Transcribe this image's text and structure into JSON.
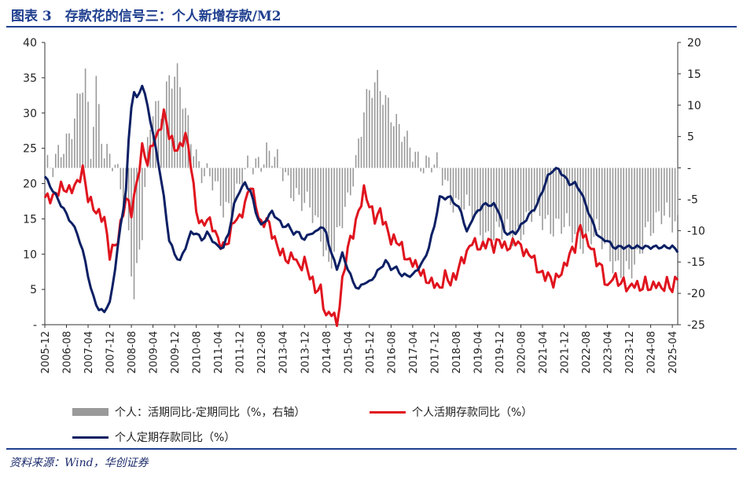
{
  "header": {
    "title": "图表 3　存款花的信号三：个人新增存款/M2"
  },
  "source": "资料来源：Wind，华创证券",
  "colors": {
    "bars": "#9a9a9a",
    "red": "#e0141e",
    "navy": "#0b1f64",
    "frame": "#1f3f8f"
  },
  "legend": {
    "bars": "个人：活期同比-定期同比（%，右轴）",
    "red": "个人活期存款同比（%）",
    "navy": "个人定期存款同比（%）"
  },
  "chart_data": {
    "type": "bar+line",
    "y_left": {
      "min": 0,
      "max": 40,
      "ticks": [
        "-",
        "5",
        "10",
        "15",
        "20",
        "25",
        "30",
        "35",
        "40"
      ]
    },
    "y_right": {
      "min": -25,
      "max": 20,
      "ticks": [
        "-25",
        "-20",
        "-15",
        "-10",
        "-5",
        "-",
        "5",
        "10",
        "15",
        "20"
      ]
    },
    "x_ticks": [
      "2005-12",
      "2006-08",
      "2007-04",
      "2007-12",
      "2008-08",
      "2009-04",
      "2009-12",
      "2010-08",
      "2011-04",
      "2011-12",
      "2012-08",
      "2013-04",
      "2013-12",
      "2014-08",
      "2015-04",
      "2015-12",
      "2016-08",
      "2017-04",
      "2017-12",
      "2018-08",
      "2019-04",
      "2019-12",
      "2020-08",
      "2021-04",
      "2021-12",
      "2022-08",
      "2023-04",
      "2023-12",
      "2024-08",
      "2025-04"
    ],
    "x_start": "2005-12",
    "x_end": "2025-06",
    "bars_right_axis": {
      "name": "个人：活期同比-定期同比（%，右轴）",
      "knots": [
        [
          0,
          0
        ],
        [
          3,
          -1
        ],
        [
          6,
          3
        ],
        [
          9,
          6
        ],
        [
          12,
          10
        ],
        [
          15,
          14
        ],
        [
          17,
          2
        ],
        [
          19,
          14
        ],
        [
          22,
          3
        ],
        [
          24,
          2
        ],
        [
          26,
          -1
        ],
        [
          30,
          -6
        ],
        [
          33,
          -19
        ],
        [
          36,
          -10
        ],
        [
          38,
          2
        ],
        [
          40,
          9
        ],
        [
          43,
          10
        ],
        [
          46,
          15
        ],
        [
          49,
          14
        ],
        [
          52,
          8
        ],
        [
          55,
          4
        ],
        [
          58,
          0
        ],
        [
          62,
          -3
        ],
        [
          66,
          -6
        ],
        [
          70,
          -5
        ],
        [
          76,
          0
        ],
        [
          82,
          3
        ],
        [
          86,
          0
        ],
        [
          92,
          -3
        ],
        [
          96,
          -6
        ],
        [
          102,
          -10
        ],
        [
          105,
          -15
        ],
        [
          108,
          -12
        ],
        [
          112,
          -6
        ],
        [
          118,
          10
        ],
        [
          123,
          13
        ],
        [
          127,
          11
        ],
        [
          131,
          6
        ],
        [
          134,
          3
        ],
        [
          138,
          2
        ],
        [
          142,
          1
        ],
        [
          146,
          -1
        ],
        [
          150,
          -4
        ],
        [
          156,
          -7
        ],
        [
          162,
          -10
        ],
        [
          168,
          -11
        ],
        [
          174,
          -10
        ],
        [
          180,
          -8
        ],
        [
          186,
          -8
        ],
        [
          192,
          -10
        ],
        [
          198,
          -11
        ],
        [
          204,
          -11
        ],
        [
          210,
          -14
        ],
        [
          213,
          -16
        ],
        [
          216,
          -18
        ],
        [
          219,
          -15
        ],
        [
          222,
          -9
        ],
        [
          226,
          -9
        ],
        [
          230,
          -8
        ],
        [
          234,
          -8
        ]
      ]
    },
    "series": [
      {
        "name": "个人活期存款同比（%）",
        "knots": [
          [
            0,
            18
          ],
          [
            3,
            18
          ],
          [
            6,
            19.5
          ],
          [
            9,
            19
          ],
          [
            12,
            20
          ],
          [
            14,
            22
          ],
          [
            16,
            18
          ],
          [
            19,
            16
          ],
          [
            22,
            15
          ],
          [
            24,
            10
          ],
          [
            27,
            12
          ],
          [
            30,
            18
          ],
          [
            32,
            16
          ],
          [
            34,
            20
          ],
          [
            36,
            25
          ],
          [
            38,
            23
          ],
          [
            40,
            26
          ],
          [
            42,
            27
          ],
          [
            44,
            30
          ],
          [
            46,
            27
          ],
          [
            48,
            25
          ],
          [
            50,
            25
          ],
          [
            52,
            27
          ],
          [
            54,
            23
          ],
          [
            56,
            16
          ],
          [
            58,
            14
          ],
          [
            60,
            15
          ],
          [
            62,
            14
          ],
          [
            64,
            12
          ],
          [
            66,
            11
          ],
          [
            68,
            12
          ],
          [
            70,
            15
          ],
          [
            72,
            15
          ],
          [
            74,
            17
          ],
          [
            76,
            20
          ],
          [
            78,
            17
          ],
          [
            80,
            14
          ],
          [
            82,
            15
          ],
          [
            84,
            13
          ],
          [
            86,
            11
          ],
          [
            88,
            10
          ],
          [
            90,
            9
          ],
          [
            92,
            10
          ],
          [
            94,
            8
          ],
          [
            96,
            9
          ],
          [
            98,
            7
          ],
          [
            100,
            5
          ],
          [
            102,
            5
          ],
          [
            104,
            1
          ],
          [
            106,
            2
          ],
          [
            108,
            0
          ],
          [
            110,
            6
          ],
          [
            112,
            11
          ],
          [
            114,
            13
          ],
          [
            116,
            16
          ],
          [
            118,
            19
          ],
          [
            119,
            18
          ],
          [
            120,
            17
          ],
          [
            122,
            15
          ],
          [
            124,
            16
          ],
          [
            126,
            14
          ],
          [
            128,
            12
          ],
          [
            130,
            12
          ],
          [
            132,
            11
          ],
          [
            134,
            9
          ],
          [
            136,
            9
          ],
          [
            138,
            8
          ],
          [
            140,
            7
          ],
          [
            142,
            6
          ],
          [
            144,
            6
          ],
          [
            146,
            5
          ],
          [
            148,
            7
          ],
          [
            150,
            6
          ],
          [
            152,
            7
          ],
          [
            154,
            9
          ],
          [
            156,
            10
          ],
          [
            158,
            12
          ],
          [
            160,
            11
          ],
          [
            162,
            11
          ],
          [
            164,
            12
          ],
          [
            166,
            11
          ],
          [
            168,
            12
          ],
          [
            170,
            11
          ],
          [
            172,
            11
          ],
          [
            174,
            12
          ],
          [
            176,
            11
          ],
          [
            178,
            10
          ],
          [
            180,
            10
          ],
          [
            182,
            8
          ],
          [
            184,
            7
          ],
          [
            186,
            7
          ],
          [
            188,
            6
          ],
          [
            190,
            7
          ],
          [
            192,
            8
          ],
          [
            194,
            10
          ],
          [
            196,
            11
          ],
          [
            198,
            14
          ],
          [
            200,
            12
          ],
          [
            202,
            11
          ],
          [
            204,
            9
          ],
          [
            206,
            8
          ],
          [
            208,
            5
          ],
          [
            210,
            7
          ],
          [
            212,
            6
          ],
          [
            214,
            6
          ],
          [
            216,
            5
          ],
          [
            218,
            6
          ],
          [
            220,
            5
          ],
          [
            222,
            6
          ],
          [
            224,
            5
          ],
          [
            226,
            6
          ],
          [
            228,
            5
          ],
          [
            230,
            6
          ],
          [
            232,
            5
          ],
          [
            234,
            7
          ]
        ]
      },
      {
        "name": "个人定期存款同比（%）",
        "knots": [
          [
            0,
            21
          ],
          [
            3,
            19
          ],
          [
            6,
            17
          ],
          [
            9,
            15
          ],
          [
            12,
            13
          ],
          [
            15,
            9
          ],
          [
            17,
            5
          ],
          [
            19,
            3
          ],
          [
            20,
            2
          ],
          [
            22,
            2
          ],
          [
            24,
            3
          ],
          [
            26,
            8
          ],
          [
            28,
            14
          ],
          [
            30,
            19
          ],
          [
            31,
            26
          ],
          [
            32,
            31
          ],
          [
            33,
            33
          ],
          [
            34,
            32
          ],
          [
            36,
            34
          ],
          [
            38,
            31
          ],
          [
            40,
            27
          ],
          [
            42,
            23
          ],
          [
            44,
            18
          ],
          [
            46,
            12
          ],
          [
            48,
            10
          ],
          [
            50,
            9
          ],
          [
            52,
            11
          ],
          [
            54,
            13
          ],
          [
            56,
            13
          ],
          [
            58,
            12
          ],
          [
            60,
            13
          ],
          [
            62,
            12
          ],
          [
            64,
            11
          ],
          [
            66,
            11
          ],
          [
            68,
            13
          ],
          [
            70,
            17
          ],
          [
            72,
            19
          ],
          [
            74,
            20
          ],
          [
            76,
            19
          ],
          [
            78,
            16
          ],
          [
            80,
            14
          ],
          [
            82,
            15
          ],
          [
            84,
            16
          ],
          [
            86,
            15
          ],
          [
            88,
            14
          ],
          [
            90,
            14
          ],
          [
            92,
            13
          ],
          [
            94,
            13
          ],
          [
            96,
            12
          ],
          [
            98,
            13
          ],
          [
            100,
            13
          ],
          [
            102,
            14
          ],
          [
            104,
            13
          ],
          [
            106,
            10
          ],
          [
            108,
            8
          ],
          [
            110,
            10
          ],
          [
            112,
            8
          ],
          [
            114,
            6
          ],
          [
            116,
            5
          ],
          [
            118,
            6
          ],
          [
            120,
            6
          ],
          [
            122,
            7
          ],
          [
            124,
            8
          ],
          [
            126,
            9
          ],
          [
            128,
            8
          ],
          [
            130,
            8
          ],
          [
            132,
            7
          ],
          [
            134,
            7
          ],
          [
            136,
            7
          ],
          [
            138,
            8
          ],
          [
            140,
            9
          ],
          [
            142,
            11
          ],
          [
            144,
            14
          ],
          [
            146,
            18
          ],
          [
            148,
            18
          ],
          [
            150,
            18
          ],
          [
            152,
            17
          ],
          [
            154,
            16
          ],
          [
            156,
            13
          ],
          [
            158,
            15
          ],
          [
            160,
            16
          ],
          [
            162,
            17
          ],
          [
            164,
            17
          ],
          [
            166,
            17
          ],
          [
            168,
            16
          ],
          [
            170,
            13
          ],
          [
            172,
            13
          ],
          [
            174,
            13
          ],
          [
            176,
            14
          ],
          [
            178,
            15
          ],
          [
            180,
            16
          ],
          [
            182,
            17
          ],
          [
            184,
            19
          ],
          [
            186,
            21
          ],
          [
            188,
            22
          ],
          [
            190,
            22
          ],
          [
            192,
            21
          ],
          [
            194,
            20
          ],
          [
            196,
            20
          ],
          [
            198,
            19
          ],
          [
            200,
            17
          ],
          [
            202,
            15
          ],
          [
            204,
            13
          ],
          [
            206,
            12
          ],
          [
            208,
            12
          ],
          [
            210,
            11
          ],
          [
            212,
            11
          ],
          [
            214,
            11
          ],
          [
            216,
            11
          ],
          [
            218,
            11
          ],
          [
            220,
            11
          ],
          [
            222,
            11
          ],
          [
            224,
            11
          ],
          [
            226,
            11
          ],
          [
            228,
            11
          ],
          [
            230,
            11
          ],
          [
            232,
            11
          ],
          [
            234,
            10.5
          ]
        ]
      }
    ]
  }
}
